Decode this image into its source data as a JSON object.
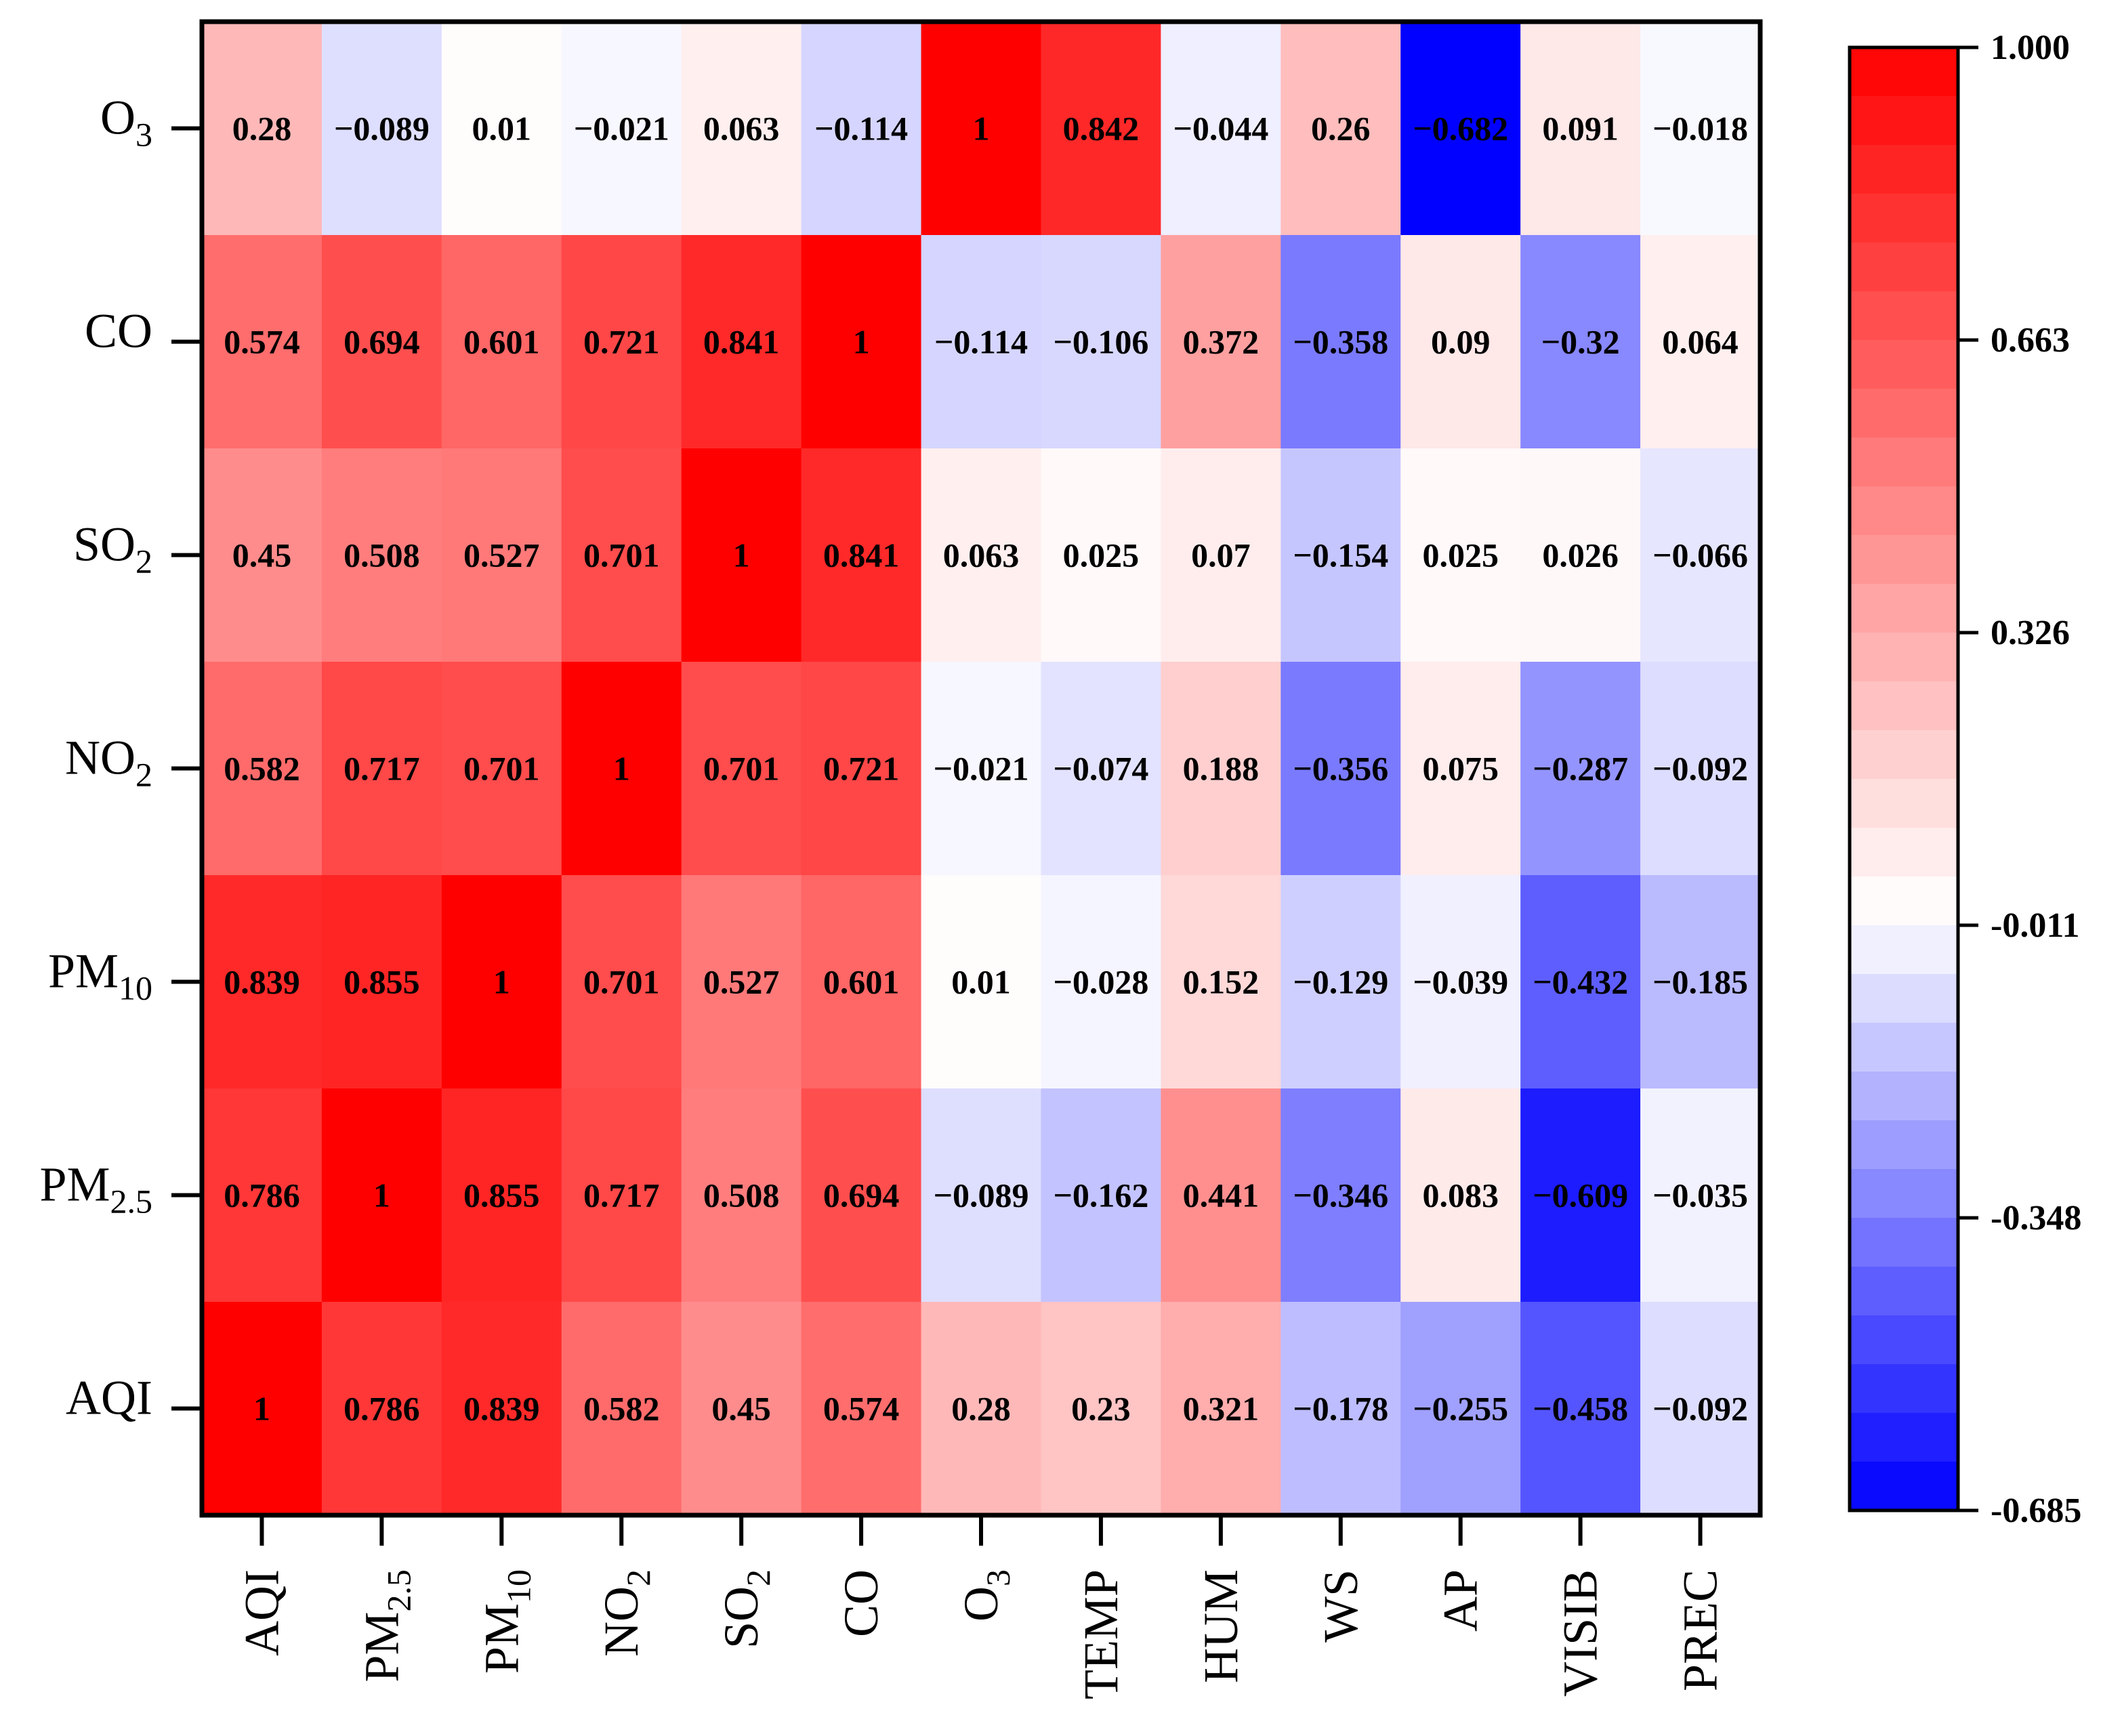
{
  "chart_data": {
    "type": "heatmap",
    "title": "",
    "columns": [
      {
        "id": "AQI",
        "base": "AQI",
        "sub": ""
      },
      {
        "id": "PM2.5",
        "base": "PM",
        "sub": "2.5"
      },
      {
        "id": "PM10",
        "base": "PM",
        "sub": "10"
      },
      {
        "id": "NO2",
        "base": "NO",
        "sub": "2"
      },
      {
        "id": "SO2",
        "base": "SO",
        "sub": "2"
      },
      {
        "id": "CO",
        "base": "CO",
        "sub": ""
      },
      {
        "id": "O3",
        "base": "O",
        "sub": "3"
      },
      {
        "id": "TEMP",
        "base": "TEMP",
        "sub": ""
      },
      {
        "id": "HUM",
        "base": "HUM",
        "sub": ""
      },
      {
        "id": "WS",
        "base": "WS",
        "sub": ""
      },
      {
        "id": "AP",
        "base": "AP",
        "sub": ""
      },
      {
        "id": "VISIB",
        "base": "VISIB",
        "sub": ""
      },
      {
        "id": "PREC",
        "base": "PREC",
        "sub": ""
      }
    ],
    "rows": [
      {
        "id": "O3",
        "base": "O",
        "sub": "3",
        "labels": [
          "0.28",
          "−0.089",
          "0.01",
          "−0.021",
          "0.063",
          "−0.114",
          "1",
          "0.842",
          "−0.044",
          "0.26",
          "−0.682",
          "0.091",
          "−0.018"
        ]
      },
      {
        "id": "CO",
        "base": "CO",
        "sub": "",
        "labels": [
          "0.574",
          "0.694",
          "0.601",
          "0.721",
          "0.841",
          "1",
          "−0.114",
          "−0.106",
          "0.372",
          "−0.358",
          "0.09",
          "−0.32",
          "0.064"
        ]
      },
      {
        "id": "SO2",
        "base": "SO",
        "sub": "2",
        "labels": [
          "0.45",
          "0.508",
          "0.527",
          "0.701",
          "1",
          "0.841",
          "0.063",
          "0.025",
          "0.07",
          "−0.154",
          "0.025",
          "0.026",
          "−0.066"
        ]
      },
      {
        "id": "NO2",
        "base": "NO",
        "sub": "2",
        "labels": [
          "0.582",
          "0.717",
          "0.701",
          "1",
          "0.701",
          "0.721",
          "−0.021",
          "−0.074",
          "0.188",
          "−0.356",
          "0.075",
          "−0.287",
          "−0.092"
        ]
      },
      {
        "id": "PM10",
        "base": "PM",
        "sub": "10",
        "labels": [
          "0.839",
          "0.855",
          "1",
          "0.701",
          "0.527",
          "0.601",
          "0.01",
          "−0.028",
          "0.152",
          "−0.129",
          "−0.039",
          "−0.432",
          "−0.185"
        ]
      },
      {
        "id": "PM2.5",
        "base": "PM",
        "sub": "2.5",
        "labels": [
          "0.786",
          "1",
          "0.855",
          "0.717",
          "0.508",
          "0.694",
          "−0.089",
          "−0.162",
          "0.441",
          "−0.346",
          "0.083",
          "−0.609",
          "−0.035"
        ]
      },
      {
        "id": "AQI",
        "base": "AQI",
        "sub": "",
        "labels": [
          "1",
          "0.786",
          "0.839",
          "0.582",
          "0.45",
          "0.574",
          "0.28",
          "0.23",
          "0.321",
          "−0.178",
          "−0.255",
          "−0.458",
          "−0.092"
        ]
      }
    ],
    "colorbar": {
      "min": -0.685,
      "max": 1.0,
      "center": 0.0,
      "tick_labels": [
        "1.000",
        "0.663",
        "0.326",
        "-0.011",
        "-0.348",
        "-0.685"
      ],
      "steps": 30,
      "colors": {
        "low": "#0000ff",
        "mid": "#ffffff",
        "high": "#ff0000"
      }
    }
  }
}
